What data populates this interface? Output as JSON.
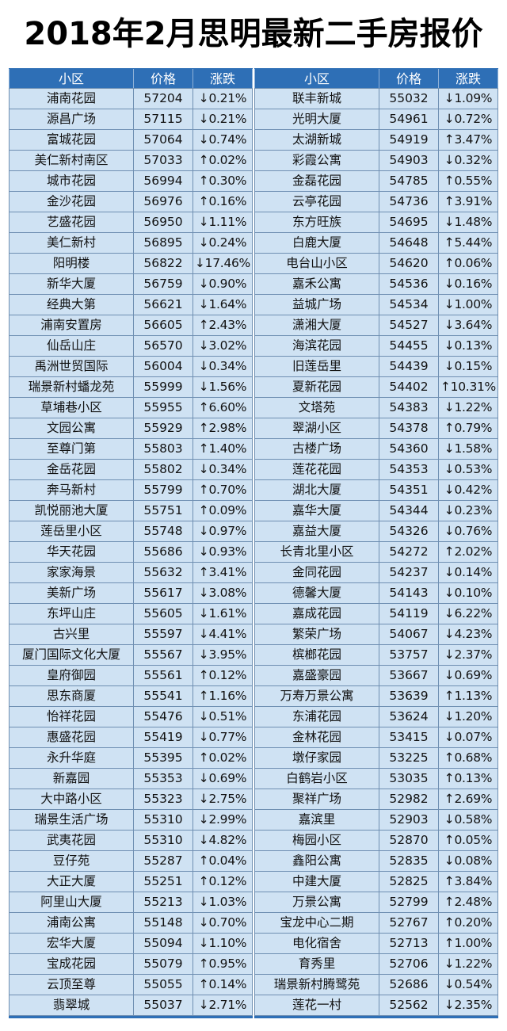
{
  "title": "2018年2月思明最新二手房报价",
  "headers": [
    "小区",
    "价格",
    "涨跌"
  ],
  "colors": {
    "header_bg": "#2e6fb6",
    "cell_bg": "#cfe2f3"
  },
  "left_rows": [
    [
      "浦南花园",
      "57204",
      "↓0.21%"
    ],
    [
      "源昌广场",
      "57115",
      "↓0.21%"
    ],
    [
      "富城花园",
      "57064",
      "↓0.74%"
    ],
    [
      "美仁新村南区",
      "57033",
      "↑0.02%"
    ],
    [
      "城市花园",
      "56994",
      "↑0.30%"
    ],
    [
      "金沙花园",
      "56976",
      "↑0.16%"
    ],
    [
      "艺盛花园",
      "56950",
      "↓1.11%"
    ],
    [
      "美仁新村",
      "56895",
      "↓0.24%"
    ],
    [
      "阳明楼",
      "56822",
      "↓17.46%"
    ],
    [
      "新华大厦",
      "56759",
      "↓0.90%"
    ],
    [
      "经典大第",
      "56621",
      "↓1.64%"
    ],
    [
      "浦南安置房",
      "56605",
      "↑2.43%"
    ],
    [
      "仙岳山庄",
      "56570",
      "↓3.02%"
    ],
    [
      "禹洲世贸国际",
      "56004",
      "↓0.34%"
    ],
    [
      "瑞景新村蟠龙苑",
      "55999",
      "↓1.56%"
    ],
    [
      "草埔巷小区",
      "55955",
      "↑6.60%"
    ],
    [
      "文园公寓",
      "55929",
      "↑2.98%"
    ],
    [
      "至尊门第",
      "55803",
      "↑1.40%"
    ],
    [
      "金岳花园",
      "55802",
      "↓0.34%"
    ],
    [
      "奔马新村",
      "55799",
      "↑0.70%"
    ],
    [
      "凯悦丽池大厦",
      "55751",
      "↑0.09%"
    ],
    [
      "莲岳里小区",
      "55748",
      "↓0.97%"
    ],
    [
      "华天花园",
      "55686",
      "↓0.93%"
    ],
    [
      "家家海景",
      "55632",
      "↑3.41%"
    ],
    [
      "美新广场",
      "55617",
      "↓3.08%"
    ],
    [
      "东坪山庄",
      "55605",
      "↓1.61%"
    ],
    [
      "古兴里",
      "55597",
      "↓4.41%"
    ],
    [
      "厦门国际文化大厦",
      "55567",
      "↓3.95%"
    ],
    [
      "皇府御园",
      "55561",
      "↑0.12%"
    ],
    [
      "思东商厦",
      "55541",
      "↑1.16%"
    ],
    [
      "怡祥花园",
      "55476",
      "↓0.51%"
    ],
    [
      "惠盛花园",
      "55419",
      "↓0.77%"
    ],
    [
      "永升华庭",
      "55395",
      "↑0.02%"
    ],
    [
      "新嘉园",
      "55353",
      "↓0.69%"
    ],
    [
      "大中路小区",
      "55323",
      "↓2.75%"
    ],
    [
      "瑞景生活广场",
      "55310",
      "↓2.99%"
    ],
    [
      "武夷花园",
      "55310",
      "↓4.82%"
    ],
    [
      "豆仔苑",
      "55287",
      "↑0.04%"
    ],
    [
      "大正大厦",
      "55251",
      "↑0.12%"
    ],
    [
      "阿里山大厦",
      "55213",
      "↓1.03%"
    ],
    [
      "浦南公寓",
      "55148",
      "↓0.70%"
    ],
    [
      "宏华大厦",
      "55094",
      "↓1.10%"
    ],
    [
      "宝成花园",
      "55079",
      "↑0.95%"
    ],
    [
      "云顶至尊",
      "55055",
      "↑0.14%"
    ],
    [
      "翡翠城",
      "55037",
      "↓2.71%"
    ]
  ],
  "right_rows": [
    [
      "联丰新城",
      "55032",
      "↓1.09%"
    ],
    [
      "光明大厦",
      "54961",
      "↓0.72%"
    ],
    [
      "太湖新城",
      "54919",
      "↑3.47%"
    ],
    [
      "彩霞公寓",
      "54903",
      "↓0.32%"
    ],
    [
      "金磊花园",
      "54785",
      "↑0.55%"
    ],
    [
      "云亭花园",
      "54736",
      "↑3.91%"
    ],
    [
      "东方旺族",
      "54695",
      "↓1.48%"
    ],
    [
      "白鹿大厦",
      "54648",
      "↑5.44%"
    ],
    [
      "电台山小区",
      "54620",
      "↑0.06%"
    ],
    [
      "嘉禾公寓",
      "54536",
      "↓0.16%"
    ],
    [
      "益城广场",
      "54534",
      "↓1.00%"
    ],
    [
      "潇湘大厦",
      "54527",
      "↓3.64%"
    ],
    [
      "海滨花园",
      "54455",
      "↓0.13%"
    ],
    [
      "旧莲岳里",
      "54439",
      "↓0.15%"
    ],
    [
      "夏新花园",
      "54402",
      "↑10.31%"
    ],
    [
      "文塔苑",
      "54383",
      "↓1.22%"
    ],
    [
      "翠湖小区",
      "54378",
      "↑0.79%"
    ],
    [
      "古楼广场",
      "54360",
      "↓1.58%"
    ],
    [
      "莲花花园",
      "54353",
      "↓0.53%"
    ],
    [
      "湖北大厦",
      "54351",
      "↓0.42%"
    ],
    [
      "嘉华大厦",
      "54344",
      "↓0.23%"
    ],
    [
      "嘉益大厦",
      "54326",
      "↓0.76%"
    ],
    [
      "长青北里小区",
      "54272",
      "↑2.02%"
    ],
    [
      "金同花园",
      "54237",
      "↓0.14%"
    ],
    [
      "德馨大厦",
      "54143",
      "↓0.10%"
    ],
    [
      "嘉成花园",
      "54119",
      "↓6.22%"
    ],
    [
      "繁荣广场",
      "54067",
      "↓4.23%"
    ],
    [
      "槟榔花园",
      "53757",
      "↓2.37%"
    ],
    [
      "嘉盛豪园",
      "53667",
      "↓0.69%"
    ],
    [
      "万寿万景公寓",
      "53639",
      "↑1.13%"
    ],
    [
      "东浦花园",
      "53624",
      "↓1.20%"
    ],
    [
      "金林花园",
      "53415",
      "↓0.07%"
    ],
    [
      "墩仔家园",
      "53225",
      "↑0.68%"
    ],
    [
      "白鹤岩小区",
      "53035",
      "↑0.13%"
    ],
    [
      "聚祥广场",
      "52982",
      "↑2.69%"
    ],
    [
      "嘉滨里",
      "52903",
      "↓0.58%"
    ],
    [
      "梅园小区",
      "52870",
      "↑0.05%"
    ],
    [
      "鑫阳公寓",
      "52835",
      "↓0.08%"
    ],
    [
      "中建大厦",
      "52825",
      "↑3.84%"
    ],
    [
      "万景公寓",
      "52799",
      "↑2.48%"
    ],
    [
      "宝龙中心二期",
      "52767",
      "↑0.20%"
    ],
    [
      "电化宿舍",
      "52713",
      "↑1.00%"
    ],
    [
      "育秀里",
      "52706",
      "↓1.22%"
    ],
    [
      "瑞景新村腾鹭苑",
      "52686",
      "↓0.54%"
    ],
    [
      "莲花一村",
      "52562",
      "↓2.35%"
    ]
  ]
}
